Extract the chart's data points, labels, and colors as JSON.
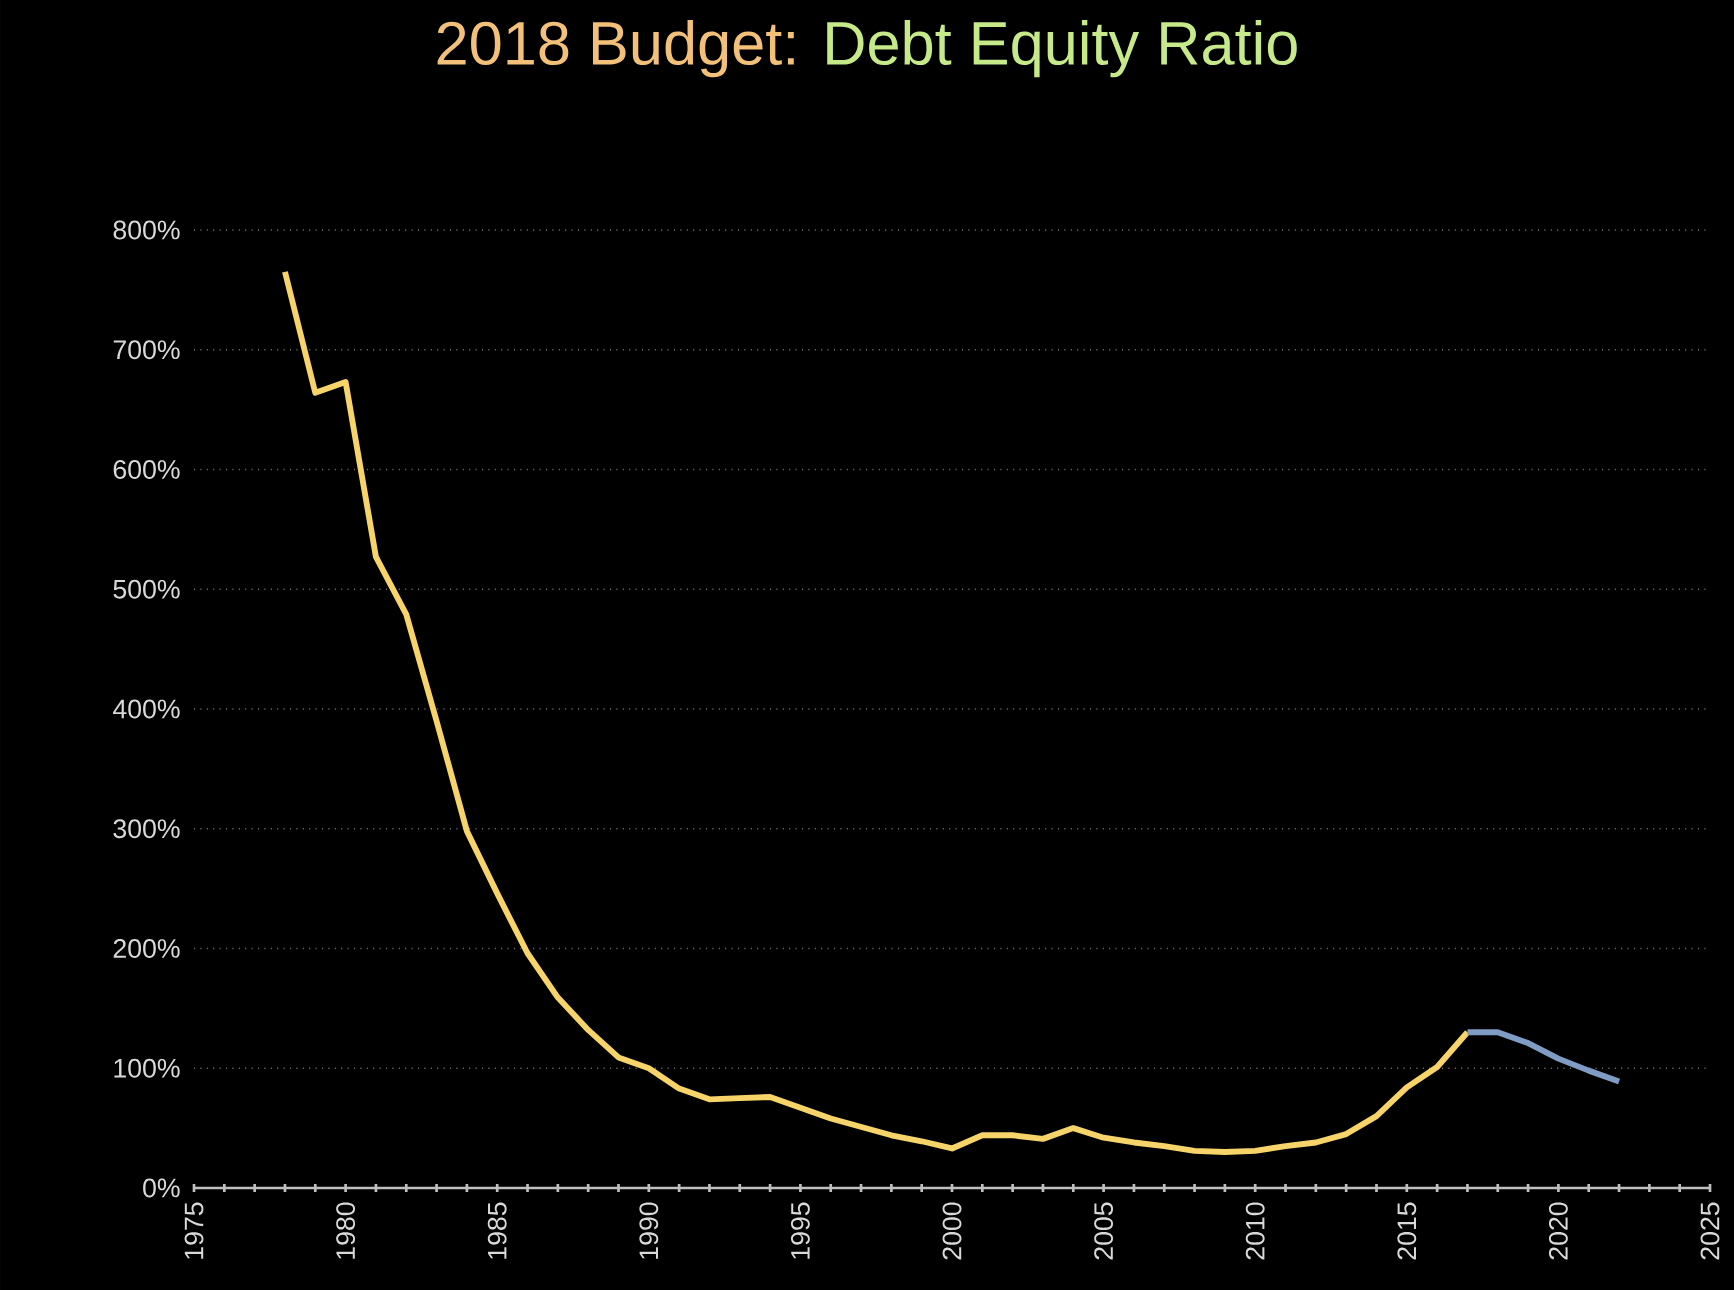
{
  "chart_data": {
    "type": "line",
    "title": "2018 Budget:",
    "subtitle": "Debt Equity Ratio",
    "series": [
      {
        "color": "#f6d46a",
        "x": [
          1978,
          1979,
          1980,
          1981,
          1982,
          1983,
          1984,
          1985,
          1986,
          1987,
          1988,
          1989,
          1990,
          1991,
          1992,
          1993,
          1994,
          1995,
          1996,
          1997,
          1998,
          1999,
          2000,
          2001,
          2002,
          2003,
          2004,
          2005,
          2006,
          2007,
          2008,
          2009,
          2010,
          2011,
          2012,
          2013,
          2014,
          2015,
          2016,
          2017
        ],
        "values": [
          765,
          664,
          673,
          527,
          479,
          390,
          298,
          246,
          196,
          159,
          132,
          109,
          100,
          83,
          74,
          75,
          76,
          67,
          58,
          51,
          44,
          39,
          33,
          44,
          44,
          41,
          50,
          42,
          38,
          35,
          31,
          30,
          31,
          35,
          38,
          45,
          60,
          84,
          101,
          130
        ]
      },
      {
        "color": "#7f9cc4",
        "x": [
          2017,
          2018,
          2019,
          2020,
          2021,
          2022
        ],
        "values": [
          130,
          130,
          121,
          108,
          98,
          89
        ]
      }
    ],
    "xlim": [
      1975,
      2025
    ],
    "xticks": [
      1975,
      1980,
      1985,
      1990,
      1995,
      2000,
      2005,
      2010,
      2015,
      2020,
      2025
    ],
    "ylim": [
      0,
      800
    ],
    "yticks": [
      {
        "value": 0,
        "label": "0%"
      },
      {
        "value": 100,
        "label": "100%"
      },
      {
        "value": 200,
        "label": "200%"
      },
      {
        "value": 300,
        "label": "300%"
      },
      {
        "value": 400,
        "label": "400%"
      },
      {
        "value": 500,
        "label": "500%"
      },
      {
        "value": 600,
        "label": "600%"
      },
      {
        "value": 700,
        "label": "700%"
      },
      {
        "value": 800,
        "label": "800%"
      }
    ],
    "grid": "y",
    "marker": "none",
    "line_style": "solid"
  }
}
